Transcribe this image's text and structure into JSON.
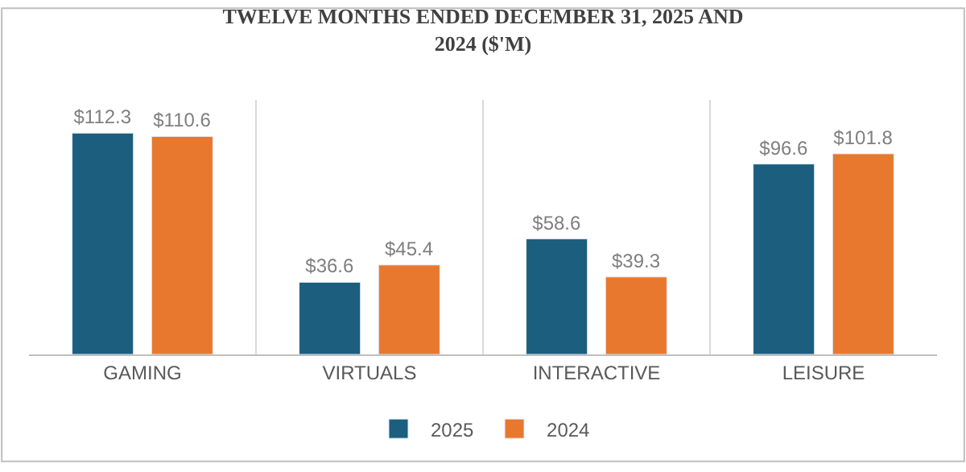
{
  "chart_data": {
    "type": "bar",
    "title": "TWELVE MONTHS ENDED DECEMBER 31, 2025 AND 2024 ($'M)",
    "categories": [
      "GAMING",
      "VIRTUALS",
      "INTERACTIVE",
      "LEISURE"
    ],
    "grid": "x",
    "legend": "bottom",
    "series": [
      {
        "name": "2025",
        "color": "#1b5e7e",
        "values": [
          112.3,
          36.6,
          58.6,
          96.6
        ],
        "value_labels": [
          "$112.3",
          "$36.6",
          "$58.6",
          "$96.6"
        ]
      },
      {
        "name": "2024",
        "color": "#e8782e",
        "values": [
          110.6,
          45.4,
          39.3,
          101.8
        ],
        "value_labels": [
          "$110.6",
          "$45.4",
          "$39.3",
          "$101.8"
        ]
      }
    ]
  }
}
